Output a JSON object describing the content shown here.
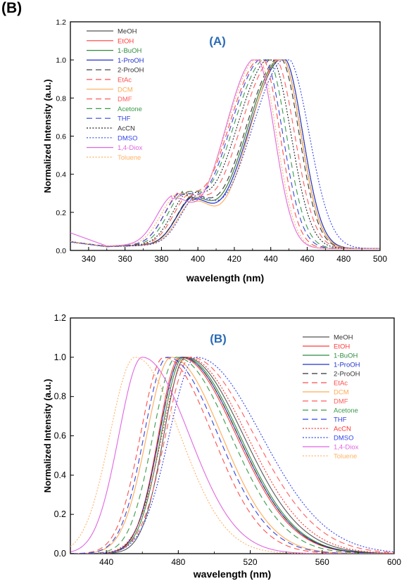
{
  "figure_label": "(B)",
  "chart_data": [
    {
      "type": "line",
      "title": "(A)",
      "xlabel": "wavelength (nm)",
      "ylabel": "Normalized Intensity (a.u.)",
      "xlim": [
        330,
        500
      ],
      "ylim": [
        0,
        1.2
      ],
      "x_ticks": [
        340,
        360,
        380,
        400,
        420,
        440,
        460,
        480,
        500
      ],
      "y_ticks": [
        0.0,
        0.2,
        0.4,
        0.6,
        0.8,
        1.0,
        1.2
      ],
      "grid": false,
      "legend_position": "top-left",
      "series": [
        {
          "name": "MeOH",
          "color": "#555555",
          "dash": "solid",
          "peak": 447,
          "wL": 19.5,
          "wR": 10.5,
          "shoulder_x": 397,
          "shoulder_y": 0.36
        },
        {
          "name": "EtOH",
          "color": "#ff3b3b",
          "dash": "solid",
          "peak": 446,
          "wL": 19.5,
          "wR": 10.5,
          "shoulder_x": 397,
          "shoulder_y": 0.36
        },
        {
          "name": "1-BuOH",
          "color": "#2e8b3f",
          "dash": "solid",
          "peak": 446,
          "wL": 19.5,
          "wR": 10.5,
          "shoulder_x": 397,
          "shoulder_y": 0.36
        },
        {
          "name": "1-ProOH",
          "color": "#2233cc",
          "dash": "solid",
          "peak": 447,
          "wL": 19.5,
          "wR": 10.5,
          "shoulder_x": 397,
          "shoulder_y": 0.36
        },
        {
          "name": "2-ProOH",
          "color": "#333333",
          "dash": "long",
          "peak": 445,
          "wL": 19.5,
          "wR": 10.5,
          "shoulder_x": 397,
          "shoulder_y": 0.36
        },
        {
          "name": "EtAc",
          "color": "#ff4d4d",
          "dash": "long",
          "peak": 435,
          "wL": 19,
          "wR": 10,
          "shoulder_x": 390,
          "shoulder_y": 0.37
        },
        {
          "name": "DCM",
          "color": "#ffaa55",
          "dash": "solid",
          "peak": 446,
          "wL": 18,
          "wR": 10.5,
          "shoulder_x": 398,
          "shoulder_y": 0.36
        },
        {
          "name": "DMF",
          "color": "#ff5c5c",
          "dash": "long",
          "peak": 442,
          "wL": 19.5,
          "wR": 11,
          "shoulder_x": 395,
          "shoulder_y": 0.36
        },
        {
          "name": "Acetone",
          "color": "#3a9a4a",
          "dash": "long",
          "peak": 438,
          "wL": 19.5,
          "wR": 10.5,
          "shoulder_x": 392,
          "shoulder_y": 0.37
        },
        {
          "name": "THF",
          "color": "#3344dd",
          "dash": "long",
          "peak": 436,
          "wL": 19,
          "wR": 10.5,
          "shoulder_x": 390,
          "shoulder_y": 0.37
        },
        {
          "name": "AcCN",
          "color": "#222222",
          "dash": "dot",
          "peak": 440,
          "wL": 19.5,
          "wR": 11,
          "shoulder_x": 394,
          "shoulder_y": 0.36
        },
        {
          "name": "DMSO",
          "color": "#3344ee",
          "dash": "dot",
          "peak": 449,
          "wL": 20,
          "wR": 12,
          "shoulder_x": 399,
          "shoulder_y": 0.36
        },
        {
          "name": "1,4-Diox",
          "color": "#e066e0",
          "dash": "solid",
          "peak": 432,
          "wL": 17.5,
          "wR": 10,
          "shoulder_x": 386,
          "shoulder_y": 0.38
        },
        {
          "name": "Toluene",
          "color": "#ffb366",
          "dash": "dot",
          "peak": 433,
          "wL": 18,
          "wR": 10,
          "shoulder_x": 388,
          "shoulder_y": 0.37
        }
      ]
    },
    {
      "type": "line",
      "title": "(B)",
      "xlabel": "wavelength (nm)",
      "ylabel": "Normalized Intensity (a.u.)",
      "xlim": [
        420,
        600
      ],
      "ylim": [
        0,
        1.2
      ],
      "x_ticks": [
        440,
        480,
        520,
        560,
        600
      ],
      "y_ticks": [
        0.0,
        0.2,
        0.4,
        0.6,
        0.8,
        1.0,
        1.2
      ],
      "grid": false,
      "legend_position": "top-right",
      "series": [
        {
          "name": "MeOH",
          "color": "#555555",
          "dash": "solid",
          "peak": 484,
          "wL": 12,
          "wR": 32
        },
        {
          "name": "EtOH",
          "color": "#ff3b3b",
          "dash": "solid",
          "peak": 481,
          "wL": 12,
          "wR": 31
        },
        {
          "name": "1-BuOH",
          "color": "#2e8b3f",
          "dash": "solid",
          "peak": 483,
          "wL": 12.5,
          "wR": 31
        },
        {
          "name": "1-ProOH",
          "color": "#2233cc",
          "dash": "solid",
          "peak": 482,
          "wL": 12.5,
          "wR": 31
        },
        {
          "name": "2-ProOH",
          "color": "#333333",
          "dash": "long",
          "peak": 482,
          "wL": 12.5,
          "wR": 31
        },
        {
          "name": "EtAc",
          "color": "#ff4d4d",
          "dash": "long",
          "peak": 472,
          "wL": 13,
          "wR": 27
        },
        {
          "name": "DCM",
          "color": "#ffaa55",
          "dash": "solid",
          "peak": 476,
          "wL": 13.5,
          "wR": 28
        },
        {
          "name": "DMF",
          "color": "#ff5c5c",
          "dash": "long",
          "peak": 487,
          "wL": 14,
          "wR": 35
        },
        {
          "name": "Acetone",
          "color": "#3a9a4a",
          "dash": "long",
          "peak": 479,
          "wL": 13,
          "wR": 30
        },
        {
          "name": "THF",
          "color": "#3344dd",
          "dash": "long",
          "peak": 474,
          "wL": 13,
          "wR": 28
        },
        {
          "name": "AcCN",
          "color": "#ff3333",
          "dash": "dot",
          "peak": 485,
          "wL": 14,
          "wR": 33
        },
        {
          "name": "DMSO",
          "color": "#3344ee",
          "dash": "dot",
          "peak": 490,
          "wL": 15,
          "wR": 36
        },
        {
          "name": "1,4-Diox",
          "color": "#e066e0",
          "dash": "solid",
          "peak": 460,
          "wL": 13,
          "wR": 26
        },
        {
          "name": "Toluene",
          "color": "#ffb366",
          "dash": "dot",
          "peak": 456,
          "wL": 14,
          "wR": 25
        }
      ]
    }
  ]
}
